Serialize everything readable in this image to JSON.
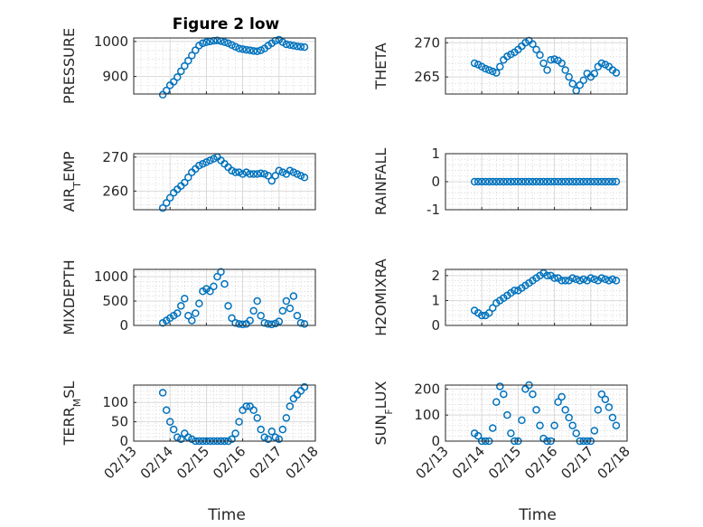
{
  "figure_title": "Figure 2 low",
  "xlabel": "Time",
  "chart_data": [
    {
      "type": "scatter",
      "ylabel": "PRESSURE",
      "ylim": [
        850,
        1010
      ],
      "yticks": [
        900,
        1000
      ],
      "ytick_labels": [
        "900",
        "1000"
      ],
      "minor_y": 4,
      "x": [
        13.8,
        13.9,
        14.0,
        14.1,
        14.2,
        14.3,
        14.4,
        14.5,
        14.6,
        14.7,
        14.8,
        14.9,
        15.0,
        15.1,
        15.2,
        15.3,
        15.4,
        15.5,
        15.6,
        15.7,
        15.8,
        15.9,
        16.0,
        16.1,
        16.2,
        16.3,
        16.4,
        16.5,
        16.6,
        16.7,
        16.8,
        16.9,
        17.0,
        17.1,
        17.2,
        17.3,
        17.4,
        17.5,
        17.6,
        17.7
      ],
      "y": [
        848,
        860,
        875,
        885,
        898,
        915,
        930,
        945,
        960,
        975,
        988,
        995,
        998,
        1000,
        1002,
        1003,
        1001,
        998,
        995,
        990,
        985,
        980,
        978,
        976,
        975,
        973,
        972,
        975,
        980,
        988,
        995,
        1002,
        1005,
        998,
        992,
        990,
        988,
        986,
        985,
        984
      ]
    },
    {
      "type": "scatter",
      "ylabel": "THETA",
      "ylim": [
        262.5,
        270.7
      ],
      "yticks": [
        265,
        270
      ],
      "ytick_labels": [
        "265",
        "270"
      ],
      "minor_y": 5,
      "x": [
        13.8,
        13.9,
        14.0,
        14.1,
        14.2,
        14.3,
        14.4,
        14.5,
        14.6,
        14.7,
        14.8,
        14.9,
        15.0,
        15.1,
        15.2,
        15.3,
        15.4,
        15.5,
        15.6,
        15.7,
        15.8,
        15.9,
        16.0,
        16.1,
        16.2,
        16.3,
        16.4,
        16.5,
        16.6,
        16.7,
        16.8,
        16.9,
        17.0,
        17.1,
        17.2,
        17.3,
        17.4,
        17.5,
        17.6,
        17.7
      ],
      "y": [
        267.0,
        266.8,
        266.5,
        266.2,
        266.0,
        265.8,
        265.6,
        266.5,
        267.5,
        268.0,
        268.3,
        268.6,
        269.0,
        269.5,
        270.0,
        270.3,
        269.8,
        269.0,
        268.2,
        267.0,
        266.0,
        267.5,
        267.6,
        267.4,
        267.0,
        266.0,
        265.0,
        264.0,
        263.0,
        263.8,
        264.5,
        265.5,
        265.0,
        265.5,
        266.5,
        267.0,
        266.8,
        266.5,
        266.0,
        265.6
      ]
    },
    {
      "type": "scatter",
      "ylabel": "AIR_TEMP",
      "ylim": [
        254.5,
        271
      ],
      "yticks": [
        260,
        270
      ],
      "ytick_labels": [
        "260",
        "270"
      ],
      "minor_y": 5,
      "x": [
        13.8,
        13.9,
        14.0,
        14.1,
        14.2,
        14.3,
        14.4,
        14.5,
        14.6,
        14.7,
        14.8,
        14.9,
        15.0,
        15.1,
        15.2,
        15.3,
        15.4,
        15.5,
        15.6,
        15.7,
        15.8,
        15.9,
        16.0,
        16.1,
        16.2,
        16.3,
        16.4,
        16.5,
        16.6,
        16.7,
        16.8,
        16.9,
        17.0,
        17.1,
        17.2,
        17.3,
        17.4,
        17.5,
        17.6,
        17.7
      ],
      "y": [
        255.0,
        256.5,
        258.0,
        259.5,
        260.5,
        261.5,
        262.5,
        264.0,
        265.5,
        266.5,
        267.5,
        268.0,
        268.5,
        269.0,
        269.5,
        270.0,
        269.0,
        268.0,
        267.0,
        266.0,
        265.5,
        265.5,
        265.0,
        265.5,
        265.0,
        265.0,
        265.0,
        265.2,
        265.0,
        264.5,
        263.0,
        264.5,
        266.0,
        265.5,
        265.0,
        266.0,
        265.5,
        265.0,
        264.5,
        264.0
      ]
    },
    {
      "type": "scatter",
      "ylabel": "RAINFALL",
      "ylim": [
        -1,
        1
      ],
      "yticks": [
        -1,
        0,
        1
      ],
      "ytick_labels": [
        "-1",
        "0",
        "1"
      ],
      "minor_y": 5,
      "x": [
        13.8,
        13.9,
        14.0,
        14.1,
        14.2,
        14.3,
        14.4,
        14.5,
        14.6,
        14.7,
        14.8,
        14.9,
        15.0,
        15.1,
        15.2,
        15.3,
        15.4,
        15.5,
        15.6,
        15.7,
        15.8,
        15.9,
        16.0,
        16.1,
        16.2,
        16.3,
        16.4,
        16.5,
        16.6,
        16.7,
        16.8,
        16.9,
        17.0,
        17.1,
        17.2,
        17.3,
        17.4,
        17.5,
        17.6,
        17.7
      ],
      "y": [
        0,
        0,
        0,
        0,
        0,
        0,
        0,
        0,
        0,
        0,
        0,
        0,
        0,
        0,
        0,
        0,
        0,
        0,
        0,
        0,
        0,
        0,
        0,
        0,
        0,
        0,
        0,
        0,
        0,
        0,
        0,
        0,
        0,
        0,
        0,
        0,
        0,
        0,
        0,
        0
      ]
    },
    {
      "type": "scatter",
      "ylabel": "MIXDEPTH",
      "ylim": [
        0,
        1150
      ],
      "yticks": [
        0,
        500,
        1000
      ],
      "ytick_labels": [
        "0",
        "500",
        "1000"
      ],
      "minor_y": 5,
      "x": [
        13.8,
        13.9,
        14.0,
        14.1,
        14.2,
        14.3,
        14.4,
        14.5,
        14.6,
        14.7,
        14.8,
        14.9,
        15.0,
        15.1,
        15.2,
        15.3,
        15.4,
        15.5,
        15.6,
        15.7,
        15.8,
        15.9,
        16.0,
        16.1,
        16.2,
        16.3,
        16.4,
        16.5,
        16.6,
        16.7,
        16.8,
        16.9,
        17.0,
        17.1,
        17.2,
        17.3,
        17.4,
        17.5,
        17.6,
        17.7
      ],
      "y": [
        50,
        100,
        150,
        200,
        250,
        400,
        550,
        200,
        100,
        250,
        450,
        700,
        750,
        700,
        800,
        1000,
        1100,
        850,
        400,
        150,
        50,
        30,
        20,
        30,
        100,
        300,
        500,
        200,
        50,
        30,
        20,
        40,
        80,
        300,
        500,
        350,
        600,
        200,
        50,
        30
      ]
    },
    {
      "type": "scatter",
      "ylabel": "H2OMIXRA",
      "ylim": [
        0,
        2.25
      ],
      "yticks": [
        0,
        1,
        2
      ],
      "ytick_labels": [
        "0",
        "1",
        "2"
      ],
      "minor_y": 5,
      "x": [
        13.8,
        13.9,
        14.0,
        14.1,
        14.2,
        14.3,
        14.4,
        14.5,
        14.6,
        14.7,
        14.8,
        14.9,
        15.0,
        15.1,
        15.2,
        15.3,
        15.4,
        15.5,
        15.6,
        15.7,
        15.8,
        15.9,
        16.0,
        16.1,
        16.2,
        16.3,
        16.4,
        16.5,
        16.6,
        16.7,
        16.8,
        16.9,
        17.0,
        17.1,
        17.2,
        17.3,
        17.4,
        17.5,
        17.6,
        17.7
      ],
      "y": [
        0.6,
        0.5,
        0.4,
        0.4,
        0.5,
        0.7,
        0.9,
        1.0,
        1.1,
        1.2,
        1.3,
        1.4,
        1.4,
        1.5,
        1.6,
        1.7,
        1.8,
        1.9,
        2.0,
        2.1,
        2.0,
        2.0,
        1.9,
        1.9,
        1.8,
        1.8,
        1.8,
        1.9,
        1.85,
        1.8,
        1.85,
        1.8,
        1.9,
        1.85,
        1.8,
        1.9,
        1.85,
        1.8,
        1.85,
        1.8
      ]
    },
    {
      "type": "scatter",
      "ylabel": "TERR_MSL",
      "ylim": [
        0,
        145
      ],
      "yticks": [
        0,
        50,
        100
      ],
      "ytick_labels": [
        "0",
        "50",
        "100"
      ],
      "minor_y": 5,
      "x": [
        13.8,
        13.9,
        14.0,
        14.1,
        14.2,
        14.3,
        14.4,
        14.5,
        14.6,
        14.7,
        14.8,
        14.9,
        15.0,
        15.1,
        15.2,
        15.3,
        15.4,
        15.5,
        15.6,
        15.7,
        15.8,
        15.9,
        16.0,
        16.1,
        16.2,
        16.3,
        16.4,
        16.5,
        16.6,
        16.7,
        16.8,
        16.9,
        17.0,
        17.1,
        17.2,
        17.3,
        17.4,
        17.5,
        17.6,
        17.7
      ],
      "y": [
        125,
        80,
        50,
        30,
        10,
        5,
        20,
        10,
        5,
        0,
        0,
        0,
        0,
        0,
        0,
        0,
        0,
        0,
        0,
        5,
        20,
        50,
        80,
        90,
        90,
        80,
        60,
        30,
        10,
        5,
        25,
        10,
        5,
        30,
        60,
        90,
        110,
        120,
        130,
        140
      ]
    },
    {
      "type": "scatter",
      "ylabel": "SUN_FLUX",
      "ylim": [
        0,
        215
      ],
      "yticks": [
        0,
        100,
        200
      ],
      "ytick_labels": [
        "0",
        "100",
        "200"
      ],
      "minor_y": 5,
      "x": [
        13.8,
        13.9,
        14.0,
        14.1,
        14.2,
        14.3,
        14.4,
        14.5,
        14.6,
        14.7,
        14.8,
        14.9,
        15.0,
        15.1,
        15.2,
        15.3,
        15.4,
        15.5,
        15.6,
        15.7,
        15.8,
        15.9,
        16.0,
        16.1,
        16.2,
        16.3,
        16.4,
        16.5,
        16.6,
        16.7,
        16.8,
        16.9,
        17.0,
        17.1,
        17.2,
        17.3,
        17.4,
        17.5,
        17.6,
        17.7
      ],
      "y": [
        30,
        20,
        0,
        0,
        0,
        50,
        150,
        210,
        180,
        100,
        30,
        0,
        0,
        80,
        200,
        215,
        180,
        120,
        60,
        10,
        0,
        0,
        60,
        150,
        170,
        120,
        90,
        60,
        30,
        0,
        0,
        0,
        0,
        40,
        120,
        180,
        160,
        130,
        90,
        60
      ]
    }
  ],
  "xaxis": {
    "range": [
      13,
      18
    ],
    "ticks": [
      13,
      14,
      15,
      16,
      17,
      18
    ],
    "tick_labels": [
      "02/13",
      "02/14",
      "02/15",
      "02/16",
      "02/17",
      "02/18"
    ]
  }
}
